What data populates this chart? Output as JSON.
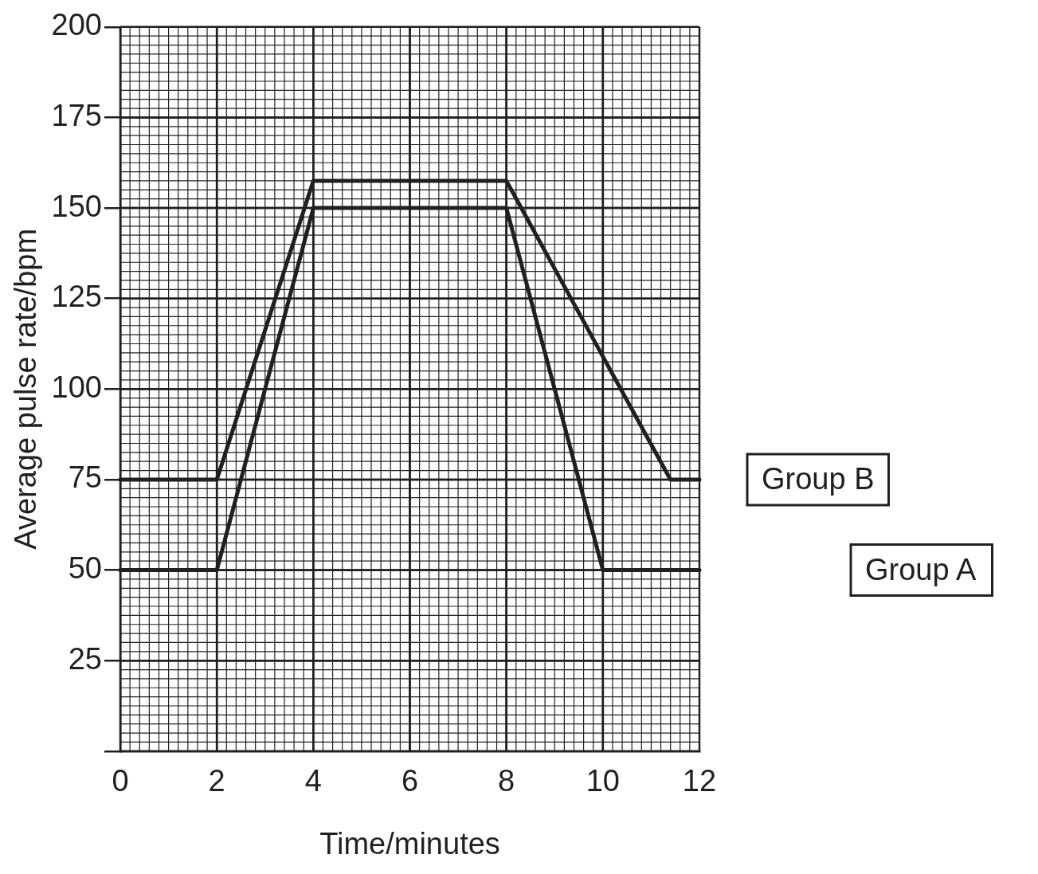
{
  "chart_data": {
    "type": "line",
    "xlabel": "Time/minutes",
    "ylabel": "Average pulse rate/bpm",
    "x": [
      0,
      2,
      4,
      8,
      10,
      12
    ],
    "series": [
      {
        "name": "Group A",
        "color": "#231f20",
        "values": [
          50,
          50,
          150,
          150,
          50,
          50
        ]
      },
      {
        "name": "Group B",
        "color": "#231f20",
        "x": [
          0,
          2,
          4,
          8,
          11.4,
          12
        ],
        "values": [
          75,
          75,
          157.5,
          157.5,
          75,
          75
        ]
      }
    ],
    "xlim": [
      0,
      12
    ],
    "xticks": [
      0,
      2,
      4,
      6,
      8,
      10,
      12
    ],
    "ylim": [
      0,
      200
    ],
    "yticks": [
      {
        "value": 0,
        "label": null
      },
      25,
      50,
      75,
      100,
      125,
      150,
      175,
      200
    ],
    "grid": true,
    "legend": false,
    "marker": "none",
    "line_style": "solid"
  }
}
